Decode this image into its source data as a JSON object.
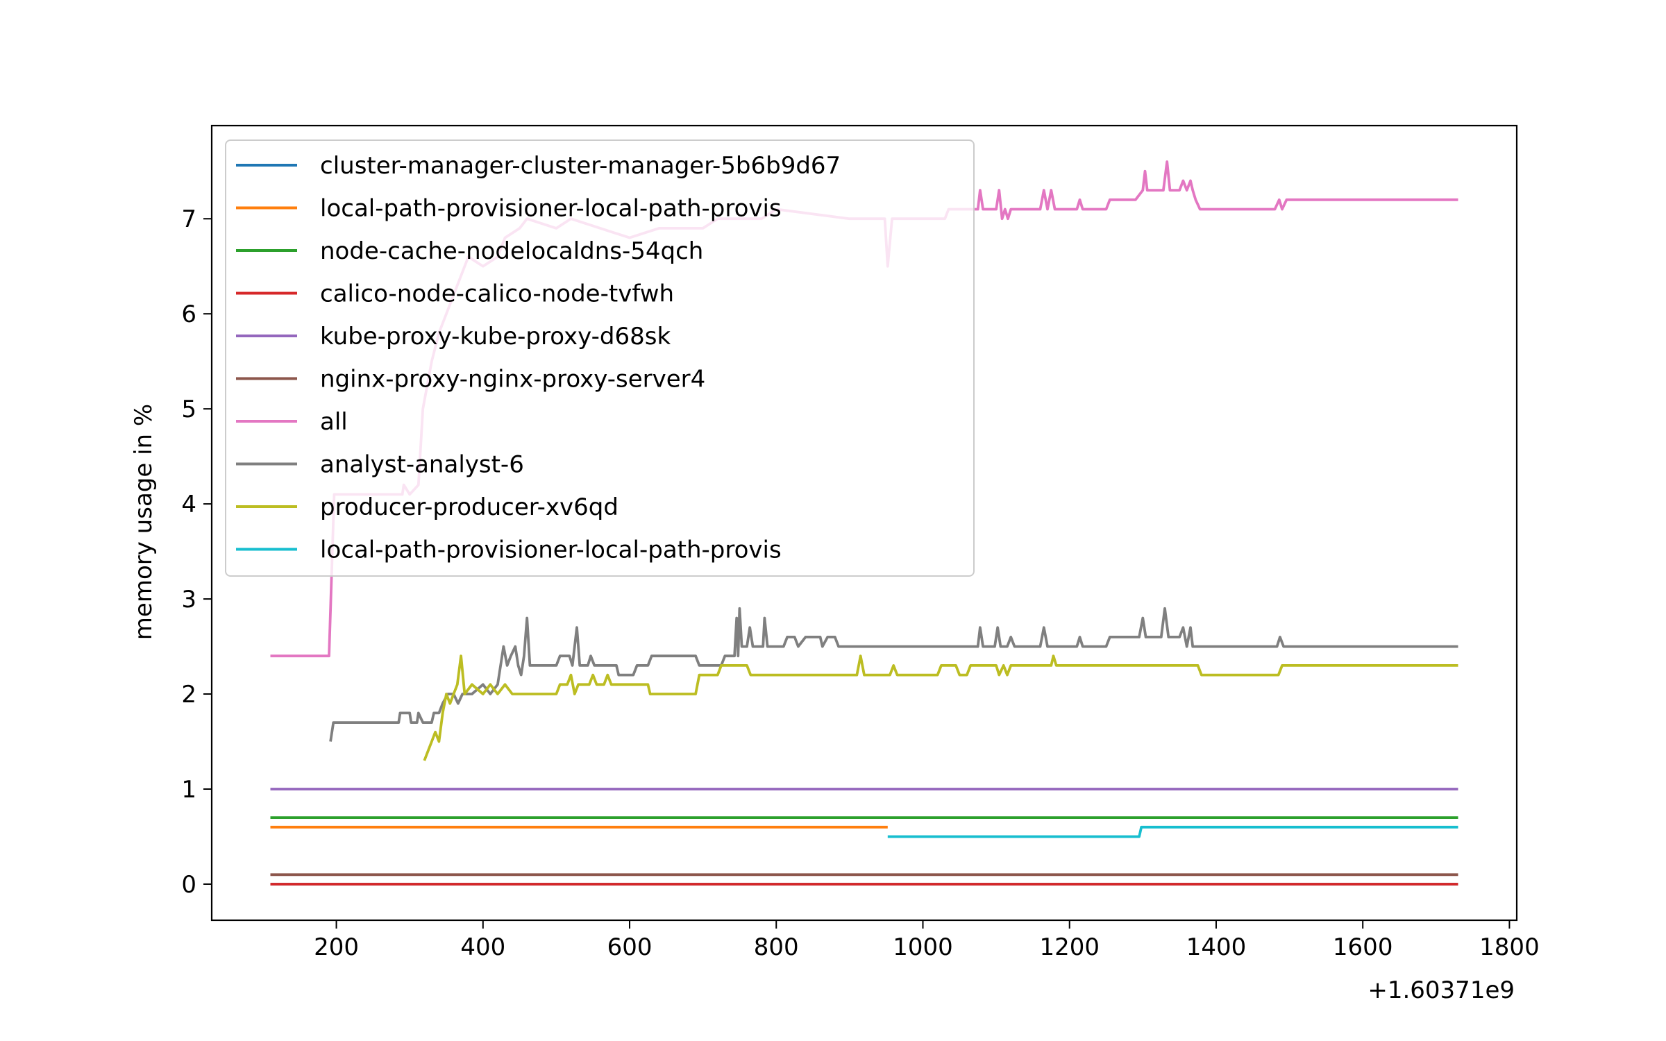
{
  "chart_data": {
    "type": "line",
    "title": "",
    "xlabel": "",
    "ylabel": "memory usage in %",
    "x_offset_label": "+1.60371e9",
    "xlim": [
      30,
      1810
    ],
    "ylim": [
      -0.38,
      7.98
    ],
    "xticks": [
      200,
      400,
      600,
      800,
      1000,
      1200,
      1400,
      1600,
      1800
    ],
    "yticks": [
      0,
      1,
      2,
      3,
      4,
      5,
      6,
      7
    ],
    "grid": false,
    "legend_location": "upper left",
    "series": [
      {
        "name": "cluster-manager-cluster-manager-5b6b9d67",
        "color": "#1f77b4",
        "points": [
          [
            110,
            0
          ],
          [
            1730,
            0
          ]
        ]
      },
      {
        "name": "local-path-provisioner-local-path-provis",
        "color": "#ff7f0e",
        "points": [
          [
            110,
            0.6
          ],
          [
            952,
            0.6
          ]
        ]
      },
      {
        "name": "node-cache-nodelocaldns-54qch",
        "color": "#2ca02c",
        "points": [
          [
            110,
            0.7
          ],
          [
            1730,
            0.7
          ]
        ]
      },
      {
        "name": "calico-node-calico-node-tvfwh",
        "color": "#d62728",
        "points": [
          [
            110,
            0
          ],
          [
            1730,
            0
          ]
        ]
      },
      {
        "name": "kube-proxy-kube-proxy-d68sk",
        "color": "#9467bd",
        "points": [
          [
            110,
            1.0
          ],
          [
            1730,
            1.0
          ]
        ]
      },
      {
        "name": "nginx-proxy-nginx-proxy-server4",
        "color": "#8c564b",
        "points": [
          [
            110,
            0.1
          ],
          [
            1730,
            0.1
          ]
        ]
      },
      {
        "name": "all",
        "color": "#e377c2",
        "points": [
          [
            110,
            2.4
          ],
          [
            190,
            2.4
          ],
          [
            197,
            4.1
          ],
          [
            290,
            4.1
          ],
          [
            292,
            4.2
          ],
          [
            300,
            4.1
          ],
          [
            312,
            4.2
          ],
          [
            318,
            5.0
          ],
          [
            330,
            5.5
          ],
          [
            340,
            5.8
          ],
          [
            350,
            6.0
          ],
          [
            360,
            6.2
          ],
          [
            370,
            6.4
          ],
          [
            380,
            6.6
          ],
          [
            400,
            6.5
          ],
          [
            420,
            6.6
          ],
          [
            430,
            6.8
          ],
          [
            450,
            6.9
          ],
          [
            460,
            7.0
          ],
          [
            500,
            6.9
          ],
          [
            520,
            7.0
          ],
          [
            560,
            6.9
          ],
          [
            600,
            6.8
          ],
          [
            640,
            6.9
          ],
          [
            700,
            6.9
          ],
          [
            720,
            7.0
          ],
          [
            780,
            7.0
          ],
          [
            800,
            7.1
          ],
          [
            900,
            7.0
          ],
          [
            948,
            7.0
          ],
          [
            952,
            6.5
          ],
          [
            958,
            7.0
          ],
          [
            1030,
            7.0
          ],
          [
            1035,
            7.1
          ],
          [
            1060,
            7.1
          ],
          [
            1075,
            7.1
          ],
          [
            1078,
            7.3
          ],
          [
            1082,
            7.1
          ],
          [
            1100,
            7.1
          ],
          [
            1104,
            7.3
          ],
          [
            1108,
            7.0
          ],
          [
            1112,
            7.1
          ],
          [
            1116,
            7.0
          ],
          [
            1120,
            7.1
          ],
          [
            1160,
            7.1
          ],
          [
            1165,
            7.3
          ],
          [
            1170,
            7.1
          ],
          [
            1175,
            7.3
          ],
          [
            1180,
            7.1
          ],
          [
            1210,
            7.1
          ],
          [
            1214,
            7.2
          ],
          [
            1218,
            7.1
          ],
          [
            1250,
            7.1
          ],
          [
            1255,
            7.2
          ],
          [
            1290,
            7.2
          ],
          [
            1300,
            7.3
          ],
          [
            1303,
            7.5
          ],
          [
            1306,
            7.3
          ],
          [
            1328,
            7.3
          ],
          [
            1333,
            7.6
          ],
          [
            1337,
            7.3
          ],
          [
            1350,
            7.3
          ],
          [
            1355,
            7.4
          ],
          [
            1360,
            7.3
          ],
          [
            1365,
            7.4
          ],
          [
            1368,
            7.3
          ],
          [
            1372,
            7.2
          ],
          [
            1378,
            7.1
          ],
          [
            1480,
            7.1
          ],
          [
            1486,
            7.2
          ],
          [
            1490,
            7.1
          ],
          [
            1496,
            7.2
          ],
          [
            1730,
            7.2
          ]
        ]
      },
      {
        "name": "analyst-analyst-6",
        "color": "#7f7f7f",
        "points": [
          [
            192,
            1.5
          ],
          [
            196,
            1.7
          ],
          [
            285,
            1.7
          ],
          [
            287,
            1.8
          ],
          [
            300,
            1.8
          ],
          [
            302,
            1.7
          ],
          [
            310,
            1.7
          ],
          [
            312,
            1.8
          ],
          [
            318,
            1.7
          ],
          [
            330,
            1.7
          ],
          [
            333,
            1.8
          ],
          [
            340,
            1.8
          ],
          [
            345,
            1.9
          ],
          [
            352,
            2.0
          ],
          [
            360,
            2.0
          ],
          [
            366,
            1.9
          ],
          [
            372,
            2.0
          ],
          [
            380,
            2.0
          ],
          [
            385,
            2.0
          ],
          [
            400,
            2.1
          ],
          [
            410,
            2.0
          ],
          [
            420,
            2.1
          ],
          [
            428,
            2.5
          ],
          [
            433,
            2.3
          ],
          [
            438,
            2.4
          ],
          [
            444,
            2.5
          ],
          [
            448,
            2.3
          ],
          [
            452,
            2.2
          ],
          [
            456,
            2.4
          ],
          [
            460,
            2.8
          ],
          [
            464,
            2.3
          ],
          [
            500,
            2.3
          ],
          [
            505,
            2.4
          ],
          [
            518,
            2.4
          ],
          [
            522,
            2.3
          ],
          [
            525,
            2.5
          ],
          [
            528,
            2.7
          ],
          [
            532,
            2.3
          ],
          [
            543,
            2.3
          ],
          [
            547,
            2.4
          ],
          [
            552,
            2.3
          ],
          [
            582,
            2.3
          ],
          [
            585,
            2.2
          ],
          [
            605,
            2.2
          ],
          [
            610,
            2.3
          ],
          [
            625,
            2.3
          ],
          [
            630,
            2.4
          ],
          [
            690,
            2.4
          ],
          [
            695,
            2.3
          ],
          [
            725,
            2.3
          ],
          [
            730,
            2.4
          ],
          [
            743,
            2.4
          ],
          [
            746,
            2.8
          ],
          [
            748,
            2.4
          ],
          [
            750,
            2.9
          ],
          [
            753,
            2.5
          ],
          [
            760,
            2.5
          ],
          [
            764,
            2.7
          ],
          [
            768,
            2.5
          ],
          [
            782,
            2.5
          ],
          [
            784,
            2.8
          ],
          [
            788,
            2.5
          ],
          [
            800,
            2.5
          ],
          [
            810,
            2.5
          ],
          [
            815,
            2.6
          ],
          [
            825,
            2.6
          ],
          [
            830,
            2.5
          ],
          [
            840,
            2.6
          ],
          [
            860,
            2.6
          ],
          [
            863,
            2.5
          ],
          [
            870,
            2.6
          ],
          [
            880,
            2.6
          ],
          [
            885,
            2.5
          ],
          [
            1075,
            2.5
          ],
          [
            1078,
            2.7
          ],
          [
            1082,
            2.5
          ],
          [
            1098,
            2.5
          ],
          [
            1102,
            2.7
          ],
          [
            1106,
            2.5
          ],
          [
            1115,
            2.5
          ],
          [
            1120,
            2.6
          ],
          [
            1125,
            2.5
          ],
          [
            1160,
            2.5
          ],
          [
            1165,
            2.7
          ],
          [
            1170,
            2.5
          ],
          [
            1210,
            2.5
          ],
          [
            1214,
            2.6
          ],
          [
            1218,
            2.5
          ],
          [
            1250,
            2.5
          ],
          [
            1255,
            2.6
          ],
          [
            1295,
            2.6
          ],
          [
            1300,
            2.8
          ],
          [
            1304,
            2.6
          ],
          [
            1325,
            2.6
          ],
          [
            1330,
            2.9
          ],
          [
            1335,
            2.6
          ],
          [
            1350,
            2.6
          ],
          [
            1355,
            2.7
          ],
          [
            1360,
            2.5
          ],
          [
            1365,
            2.7
          ],
          [
            1368,
            2.5
          ],
          [
            1483,
            2.5
          ],
          [
            1487,
            2.6
          ],
          [
            1492,
            2.5
          ],
          [
            1730,
            2.5
          ]
        ]
      },
      {
        "name": "producer-producer-xv6qd",
        "color": "#bcbd22",
        "points": [
          [
            320,
            1.3
          ],
          [
            325,
            1.4
          ],
          [
            330,
            1.5
          ],
          [
            335,
            1.6
          ],
          [
            340,
            1.5
          ],
          [
            345,
            1.8
          ],
          [
            350,
            2.0
          ],
          [
            355,
            1.9
          ],
          [
            360,
            2.0
          ],
          [
            365,
            2.1
          ],
          [
            370,
            2.4
          ],
          [
            375,
            2.0
          ],
          [
            385,
            2.1
          ],
          [
            400,
            2.0
          ],
          [
            410,
            2.1
          ],
          [
            420,
            2.0
          ],
          [
            430,
            2.1
          ],
          [
            440,
            2.0
          ],
          [
            500,
            2.0
          ],
          [
            505,
            2.1
          ],
          [
            515,
            2.1
          ],
          [
            520,
            2.2
          ],
          [
            525,
            2.0
          ],
          [
            530,
            2.1
          ],
          [
            545,
            2.1
          ],
          [
            550,
            2.2
          ],
          [
            555,
            2.1
          ],
          [
            565,
            2.1
          ],
          [
            570,
            2.2
          ],
          [
            575,
            2.1
          ],
          [
            625,
            2.1
          ],
          [
            628,
            2.0
          ],
          [
            690,
            2.0
          ],
          [
            695,
            2.2
          ],
          [
            720,
            2.2
          ],
          [
            725,
            2.3
          ],
          [
            760,
            2.3
          ],
          [
            765,
            2.2
          ],
          [
            910,
            2.2
          ],
          [
            915,
            2.4
          ],
          [
            920,
            2.2
          ],
          [
            955,
            2.2
          ],
          [
            960,
            2.3
          ],
          [
            965,
            2.2
          ],
          [
            1020,
            2.2
          ],
          [
            1025,
            2.3
          ],
          [
            1045,
            2.3
          ],
          [
            1050,
            2.2
          ],
          [
            1060,
            2.2
          ],
          [
            1065,
            2.3
          ],
          [
            1100,
            2.3
          ],
          [
            1104,
            2.2
          ],
          [
            1110,
            2.3
          ],
          [
            1115,
            2.2
          ],
          [
            1120,
            2.3
          ],
          [
            1175,
            2.3
          ],
          [
            1178,
            2.4
          ],
          [
            1182,
            2.3
          ],
          [
            1375,
            2.3
          ],
          [
            1380,
            2.2
          ],
          [
            1485,
            2.2
          ],
          [
            1490,
            2.3
          ],
          [
            1730,
            2.3
          ]
        ]
      },
      {
        "name": "local-path-provisioner-local-path-provis",
        "color": "#17becf",
        "points": [
          [
            952,
            0.5
          ],
          [
            1295,
            0.5
          ],
          [
            1298,
            0.6
          ],
          [
            1730,
            0.6
          ]
        ]
      }
    ]
  }
}
